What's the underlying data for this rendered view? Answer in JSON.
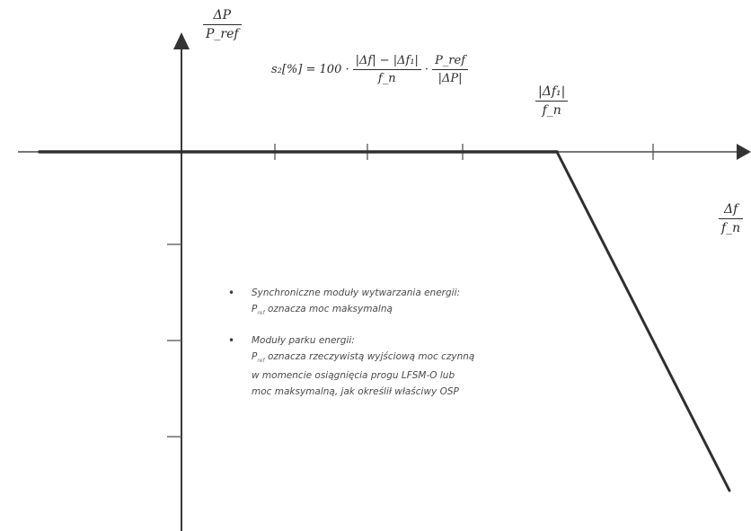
{
  "diagram": {
    "y_axis_label": {
      "numerator": "ΔP",
      "denominator": "P_ref"
    },
    "x_axis_label": {
      "numerator": "Δf",
      "denominator": "f_n"
    },
    "threshold_label": {
      "numerator": "|Δf₁|",
      "denominator": "f_n"
    },
    "formula": {
      "lhs": "s₂[%] = 100 ·",
      "frac1_num": "|Δf| − |Δf₁|",
      "frac1_den": "f_n",
      "dot": "·",
      "frac2_num": "P_ref",
      "frac2_den": "|ΔP|"
    },
    "notes": [
      {
        "bullet": "•",
        "title": "Synchroniczne moduły wytwarzania energii:",
        "subscript_symbol": "P",
        "subscript": "ref",
        "text": "oznacza moc maksymalną"
      },
      {
        "bullet": "•",
        "title": "Moduły parku energii:",
        "subscript_symbol": "P",
        "subscript": "ref",
        "text_line1": "oznacza rzeczywistą wyjściową moc czynną",
        "text_line2": "w momencie osiągnięcia progu LFSM-O lub",
        "text_line3": "moc maksymalną, jak określił właściwy OSP"
      }
    ],
    "colors": {
      "axis": "#3a3a3a",
      "curve": "#2f2f2f",
      "text": "#2a2a2a"
    }
  }
}
